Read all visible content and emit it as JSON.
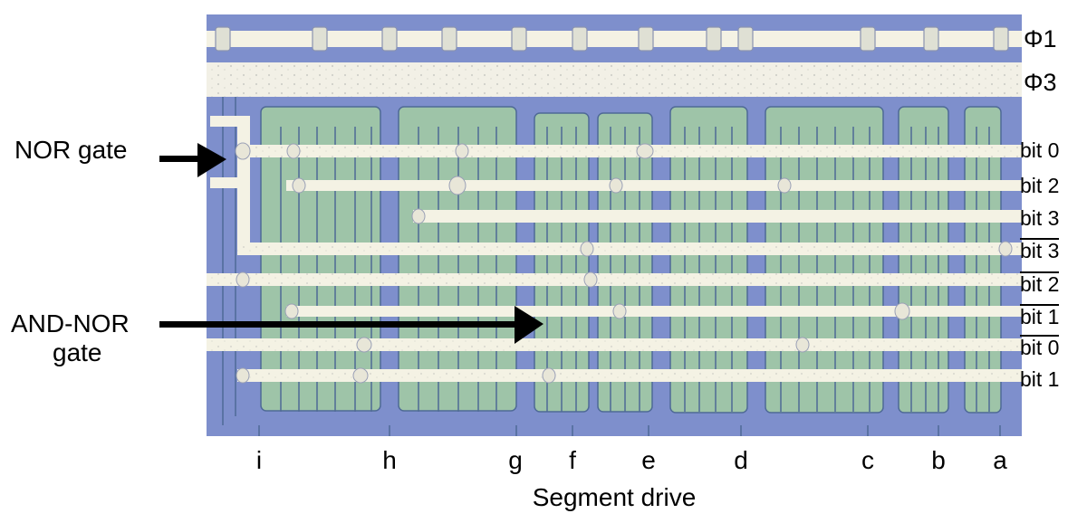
{
  "image": {
    "colors": {
      "die_background": "#7e8fcc",
      "metal": "#f4f2e4",
      "polysilicon": "#9ec4a8",
      "trace_outline": "#4f6a96"
    }
  },
  "clock_lines": [
    {
      "label": "Φ1"
    },
    {
      "label": "Φ3"
    }
  ],
  "bit_lines": [
    {
      "label": "bit 0",
      "overline": false
    },
    {
      "label": "bit 2",
      "overline": false
    },
    {
      "label": "bit 3",
      "overline": false
    },
    {
      "label": "bit 3",
      "overline": true
    },
    {
      "label": "bit 2",
      "overline": true
    },
    {
      "label": "bit 1",
      "overline": true
    },
    {
      "label": "bit 0",
      "overline": true
    },
    {
      "label": "bit 1",
      "overline": false
    }
  ],
  "annotations": {
    "nor_gate": "NOR gate",
    "and_nor_gate_line1": "AND-NOR",
    "and_nor_gate_line2": "gate"
  },
  "segments": [
    {
      "label": "i"
    },
    {
      "label": "h"
    },
    {
      "label": "g"
    },
    {
      "label": "f"
    },
    {
      "label": "e"
    },
    {
      "label": "d"
    },
    {
      "label": "c"
    },
    {
      "label": "b"
    },
    {
      "label": "a"
    }
  ],
  "caption": "Segment drive"
}
